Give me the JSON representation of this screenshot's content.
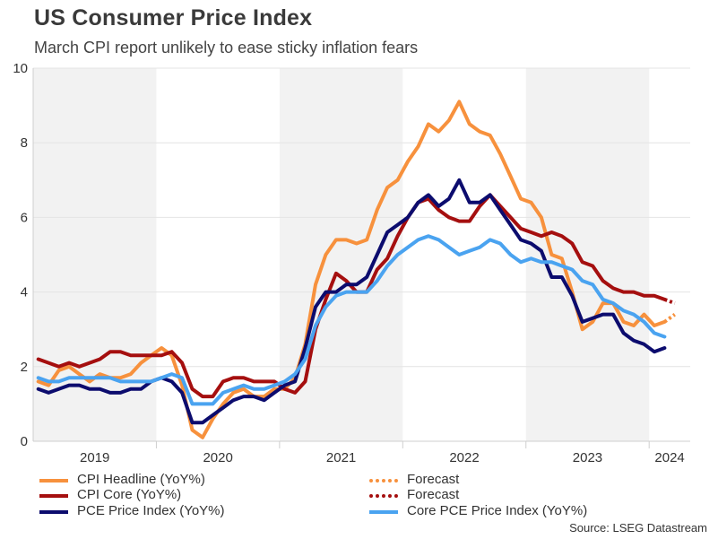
{
  "title": "US Consumer Price Index",
  "subtitle": "March CPI report unlikely to ease sticky inflation fears",
  "source": "Source: LSEG Datastream",
  "legend": [
    {
      "label": "CPI Headline (YoY%)",
      "color": "#f7913d",
      "style": "solid"
    },
    {
      "label": "Forecast",
      "color": "#f7913d",
      "style": "dotted"
    },
    {
      "label": "CPI Core (YoY%)",
      "color": "#a50f0f",
      "style": "solid"
    },
    {
      "label": "Forecast",
      "color": "#a50f0f",
      "style": "dotted"
    },
    {
      "label": "PCE Price Index (YoY%)",
      "color": "#0c0c6e",
      "style": "solid"
    },
    {
      "label": "Core PCE Price Index (YoY%)",
      "color": "#4aa3f0",
      "style": "solid"
    }
  ],
  "chart_data": {
    "type": "line",
    "title": "US Consumer Price Index",
    "xlabel": "",
    "ylabel": "",
    "ylim": [
      0,
      10
    ],
    "yticks": [
      "0",
      "2",
      "4",
      "6",
      "8",
      "10"
    ],
    "x_start": "2019-01",
    "x_end": "2024-04",
    "year_labels": [
      "2019",
      "2020",
      "2021",
      "2022",
      "2023",
      "2024"
    ],
    "shaded_years": [
      "2019",
      "2021",
      "2023"
    ],
    "series": [
      {
        "name": "CPI Headline (YoY%)",
        "color": "#f7913d",
        "start": "2019-01",
        "values": [
          1.6,
          1.5,
          1.9,
          2.0,
          1.8,
          1.6,
          1.8,
          1.7,
          1.7,
          1.8,
          2.1,
          2.3,
          2.5,
          2.3,
          1.5,
          0.3,
          0.1,
          0.6,
          1.0,
          1.3,
          1.4,
          1.2,
          1.2,
          1.4,
          1.4,
          1.7,
          2.6,
          4.2,
          5.0,
          5.4,
          5.4,
          5.3,
          5.4,
          6.2,
          6.8,
          7.0,
          7.5,
          7.9,
          8.5,
          8.3,
          8.6,
          9.1,
          8.5,
          8.3,
          8.2,
          7.7,
          7.1,
          6.5,
          6.4,
          6.0,
          5.0,
          4.9,
          4.0,
          3.0,
          3.2,
          3.7,
          3.7,
          3.2,
          3.1,
          3.4,
          3.1,
          3.2
        ]
      },
      {
        "name": "Forecast (CPI Headline)",
        "color": "#f7913d",
        "dotted": true,
        "start": "2024-02",
        "values": [
          3.2,
          3.4
        ]
      },
      {
        "name": "CPI Core (YoY%)",
        "color": "#a50f0f",
        "start": "2019-01",
        "values": [
          2.2,
          2.1,
          2.0,
          2.1,
          2.0,
          2.1,
          2.2,
          2.4,
          2.4,
          2.3,
          2.3,
          2.3,
          2.3,
          2.4,
          2.1,
          1.4,
          1.2,
          1.2,
          1.6,
          1.7,
          1.7,
          1.6,
          1.6,
          1.6,
          1.4,
          1.3,
          1.6,
          3.0,
          3.8,
          4.5,
          4.3,
          4.0,
          4.0,
          4.6,
          4.9,
          5.5,
          6.0,
          6.4,
          6.5,
          6.2,
          6.0,
          5.9,
          5.9,
          6.3,
          6.6,
          6.3,
          6.0,
          5.7,
          5.6,
          5.5,
          5.6,
          5.5,
          5.3,
          4.8,
          4.7,
          4.3,
          4.1,
          4.0,
          4.0,
          3.9,
          3.9,
          3.8
        ]
      },
      {
        "name": "Forecast (CPI Core)",
        "color": "#a50f0f",
        "dotted": true,
        "start": "2024-02",
        "values": [
          3.8,
          3.7
        ]
      },
      {
        "name": "PCE Price Index (YoY%)",
        "color": "#0c0c6e",
        "start": "2019-01",
        "values": [
          1.4,
          1.3,
          1.4,
          1.5,
          1.5,
          1.4,
          1.4,
          1.3,
          1.3,
          1.4,
          1.4,
          1.6,
          1.7,
          1.6,
          1.3,
          0.5,
          0.5,
          0.7,
          0.9,
          1.1,
          1.2,
          1.2,
          1.1,
          1.3,
          1.5,
          1.6,
          2.5,
          3.6,
          4.0,
          4.0,
          4.2,
          4.2,
          4.4,
          5.0,
          5.6,
          5.8,
          6.0,
          6.4,
          6.6,
          6.3,
          6.5,
          7.0,
          6.4,
          6.4,
          6.6,
          6.2,
          5.8,
          5.4,
          5.3,
          5.1,
          4.4,
          4.4,
          3.9,
          3.2,
          3.3,
          3.4,
          3.4,
          2.9,
          2.7,
          2.6,
          2.4,
          2.5
        ]
      },
      {
        "name": "Core PCE Price Index (YoY%)",
        "color": "#4aa3f0",
        "start": "2019-01",
        "values": [
          1.7,
          1.6,
          1.6,
          1.7,
          1.7,
          1.7,
          1.7,
          1.7,
          1.6,
          1.6,
          1.6,
          1.6,
          1.7,
          1.8,
          1.7,
          1.0,
          1.0,
          1.0,
          1.3,
          1.4,
          1.5,
          1.4,
          1.4,
          1.5,
          1.6,
          1.8,
          2.2,
          3.1,
          3.6,
          3.9,
          4.0,
          4.0,
          4.0,
          4.3,
          4.7,
          5.0,
          5.2,
          5.4,
          5.5,
          5.4,
          5.2,
          5.0,
          5.1,
          5.2,
          5.4,
          5.3,
          5.0,
          4.8,
          4.9,
          4.8,
          4.8,
          4.7,
          4.6,
          4.3,
          4.2,
          3.8,
          3.7,
          3.5,
          3.4,
          3.2,
          2.9,
          2.8
        ]
      }
    ]
  }
}
